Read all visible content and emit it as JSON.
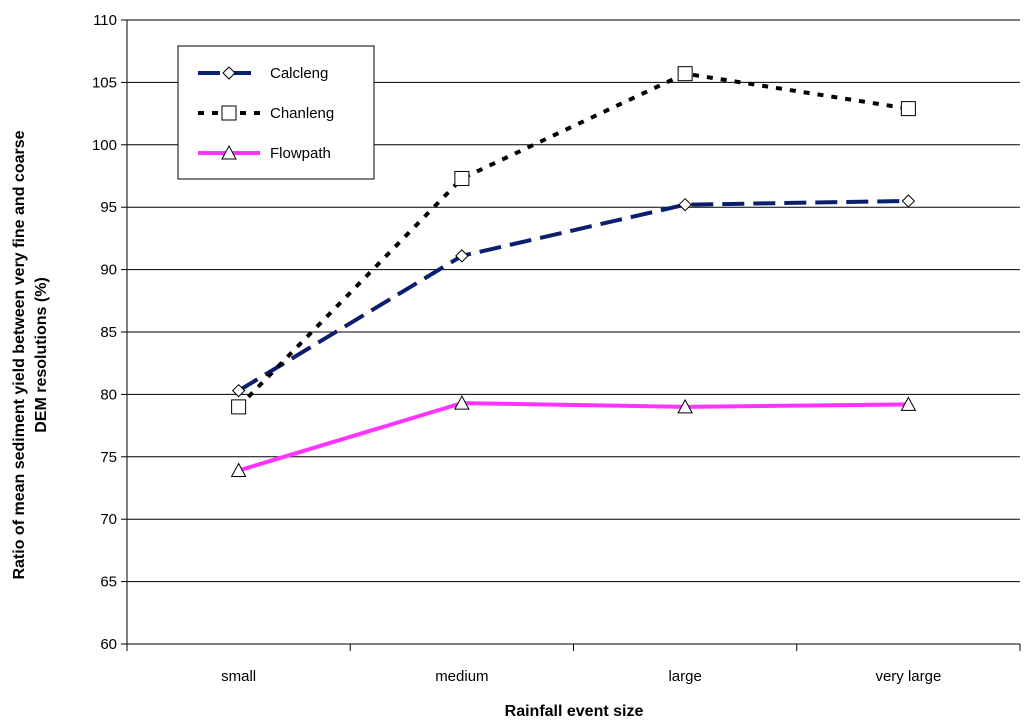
{
  "chart_data": {
    "type": "line",
    "categories": [
      "small",
      "medium",
      "large",
      "very large"
    ],
    "series": [
      {
        "name": "Calcleng",
        "values": [
          80.3,
          91.1,
          95.2,
          95.5
        ],
        "color": "#0b1f6e",
        "marker": "diamond",
        "line_style": "long-dash"
      },
      {
        "name": "Chanleng",
        "values": [
          79.0,
          97.3,
          105.7,
          102.9
        ],
        "color": "#000000",
        "marker": "square",
        "line_style": "dotted"
      },
      {
        "name": "Flowpath",
        "values": [
          73.9,
          79.3,
          79.0,
          79.2
        ],
        "color": "#ff33ff",
        "marker": "triangle",
        "line_style": "solid"
      }
    ],
    "title": "",
    "xlabel": "Rainfall event size",
    "ylabel_lines": [
      "Ratio of mean sediment yield between very fine and coarse",
      "DEM resolutions (%)"
    ],
    "ylim": [
      60,
      110
    ],
    "yticks": [
      60,
      65,
      70,
      75,
      80,
      85,
      90,
      95,
      100,
      105,
      110
    ],
    "grid": "horizontal",
    "legend_position": "top-left"
  }
}
